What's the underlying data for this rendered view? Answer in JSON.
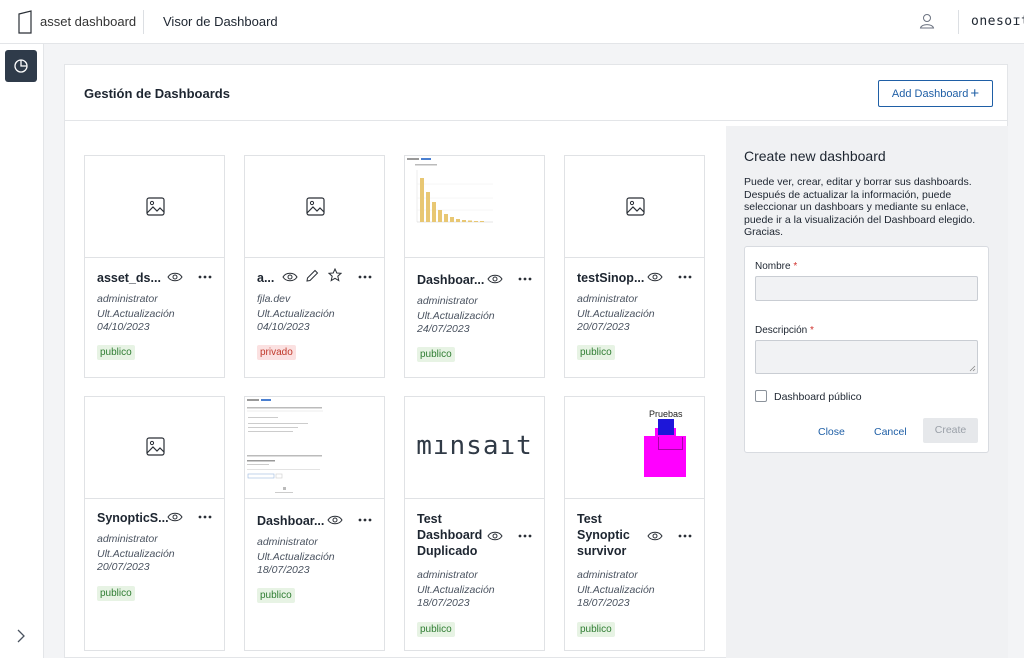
{
  "topbar": {
    "app_name": "asset dashboard",
    "page_name": "Visor de Dashboard",
    "brand": "onesoɪt",
    "user_icon": "user-icon"
  },
  "sidebar": {
    "active_icon": "pie-chart-icon",
    "expand_icon": "chevron-right-icon"
  },
  "main": {
    "title": "Gestión de Dashboards",
    "add_label": "Add Dashboard"
  },
  "cards": [
    {
      "title": "asset_ds...",
      "owner": "administrator",
      "updated_label": "Ult.Actualización",
      "date": "04/10/2023",
      "badge": "publico",
      "thumb": "placeholder-image"
    },
    {
      "title": "a...",
      "owner": "fjla.dev",
      "updated_label": "Ult.Actualización",
      "date": "04/10/2023",
      "badge": "privado",
      "thumb": "placeholder-image"
    },
    {
      "title": "Dashboar...",
      "owner": "administrator",
      "updated_label": "Ult.Actualización",
      "date": "24/07/2023",
      "badge": "publico",
      "thumb": "bar-chart-thumbnail"
    },
    {
      "title": "testSinop...",
      "owner": "administrator",
      "updated_label": "Ult.Actualización",
      "date": "20/07/2023",
      "badge": "publico",
      "thumb": "placeholder-image"
    },
    {
      "title": "SynopticS...",
      "owner": "administrator",
      "updated_label": "Ult.Actualización",
      "date": "20/07/2023",
      "badge": "publico",
      "thumb": "placeholder-image"
    },
    {
      "title": "Dashboar...",
      "owner": "administrator",
      "updated_label": "Ult.Actualización",
      "date": "18/07/2023",
      "badge": "publico",
      "thumb": "form-thumbnail"
    },
    {
      "title_lines": [
        "Test",
        "Dashboard",
        "Duplicado"
      ],
      "owner": "administrator",
      "updated_label": "Ult.Actualización",
      "date": "18/07/2023",
      "badge": "publico",
      "thumb": "minsait-logo",
      "thumb_text": "mınsaıt"
    },
    {
      "title_lines": [
        "Test",
        "Synoptic",
        "survivor"
      ],
      "owner": "administrator",
      "updated_label": "Ult.Actualización",
      "date": "18/07/2023",
      "badge": "publico",
      "thumb": "synoptic-thumbnail",
      "thumb_text": "Pruebas"
    }
  ],
  "panel": {
    "title": "Create new dashboard",
    "description": "Puede ver, crear, editar y borrar sus dashboards. Después de actualizar la información, puede seleccionar un dashboars y mediante su enlace, puede ir a la visualización del Dashboard elegido. Gracias.",
    "name_label": "Nombre",
    "desc_label": "Descripción",
    "required_mark": "*",
    "public_label": "Dashboard público",
    "close_label": "Close",
    "cancel_label": "Cancel",
    "create_label": "Create",
    "colors": {
      "accent": "#1f5fa6",
      "required": "#d0312d"
    }
  }
}
